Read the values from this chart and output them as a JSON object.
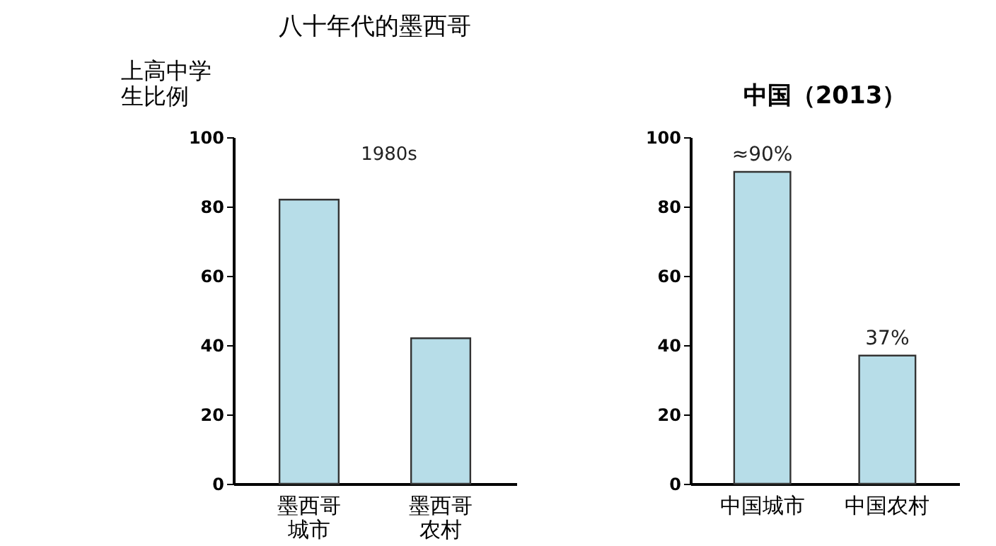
{
  "chart_data": [
    {
      "type": "bar",
      "title": "八十年代的墨西哥",
      "ylabel": "上高中学生比例",
      "categories": [
        "墨西哥城市",
        "墨西哥农村"
      ],
      "values": [
        82,
        42
      ],
      "color": "#b7dde8",
      "ylim": [
        0,
        100
      ],
      "yticks": [
        0,
        20,
        40,
        60,
        80,
        100
      ],
      "grid": false,
      "annotations": [
        "1980s"
      ]
    },
    {
      "type": "bar",
      "title": "中国（2013）",
      "categories": [
        "中国城市",
        "中国农村"
      ],
      "values": [
        90,
        37
      ],
      "value_labels": [
        "≈90%",
        "37%"
      ],
      "color": "#b7dde8",
      "ylim": [
        0,
        100
      ],
      "yticks": [
        0,
        20,
        40,
        60,
        80,
        100
      ],
      "grid": false
    }
  ]
}
